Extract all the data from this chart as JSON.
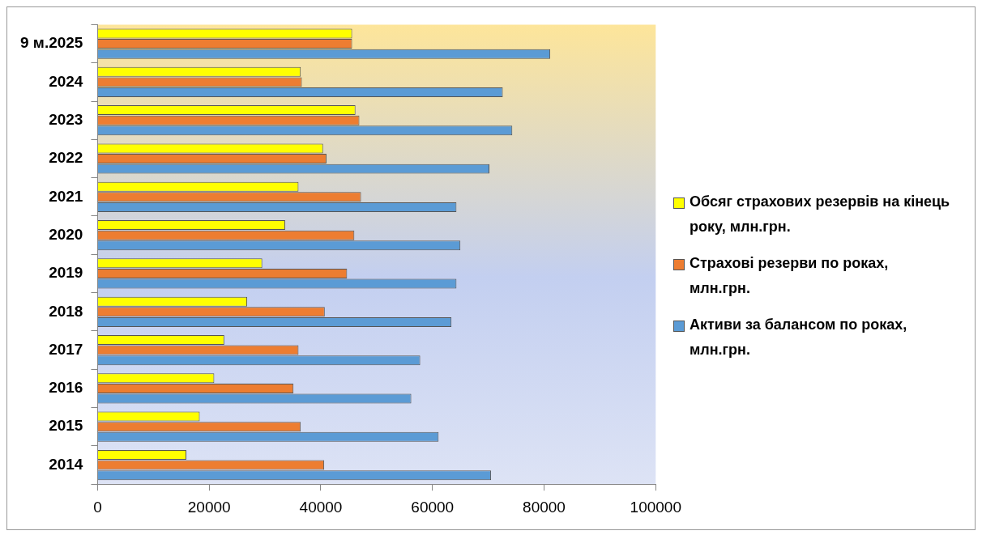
{
  "chart_data": {
    "type": "bar",
    "orientation": "horizontal",
    "categories": [
      "9 м.2025",
      "2024",
      "2023",
      "2022",
      "2021",
      "2020",
      "2019",
      "2018",
      "2017",
      "2016",
      "2015",
      "2014"
    ],
    "series": [
      {
        "name": "Обсяг страхових  резервів на кінець року, млн.грн.",
        "color": "#ffff00",
        "values": [
          45600,
          36400,
          46200,
          40400,
          36000,
          33600,
          29500,
          26800,
          22700,
          20900,
          18300,
          15900
        ]
      },
      {
        "name": "Страхові резерви по роках, млн.грн.",
        "color": "#ed7d31",
        "values": [
          45600,
          36600,
          46900,
          41000,
          47200,
          46000,
          44700,
          40700,
          36000,
          35100,
          36400,
          40600
        ]
      },
      {
        "name": "Активи за балансом по роках, млн.грн.",
        "color": "#5b9bd5",
        "values": [
          81100,
          72600,
          74300,
          70200,
          64300,
          65000,
          64300,
          63400,
          57800,
          56200,
          61100,
          70500
        ]
      }
    ],
    "xlim": [
      0,
      100000
    ],
    "xticks": [
      0,
      20000,
      40000,
      60000,
      80000,
      100000
    ],
    "grid": false,
    "legend": "right"
  }
}
